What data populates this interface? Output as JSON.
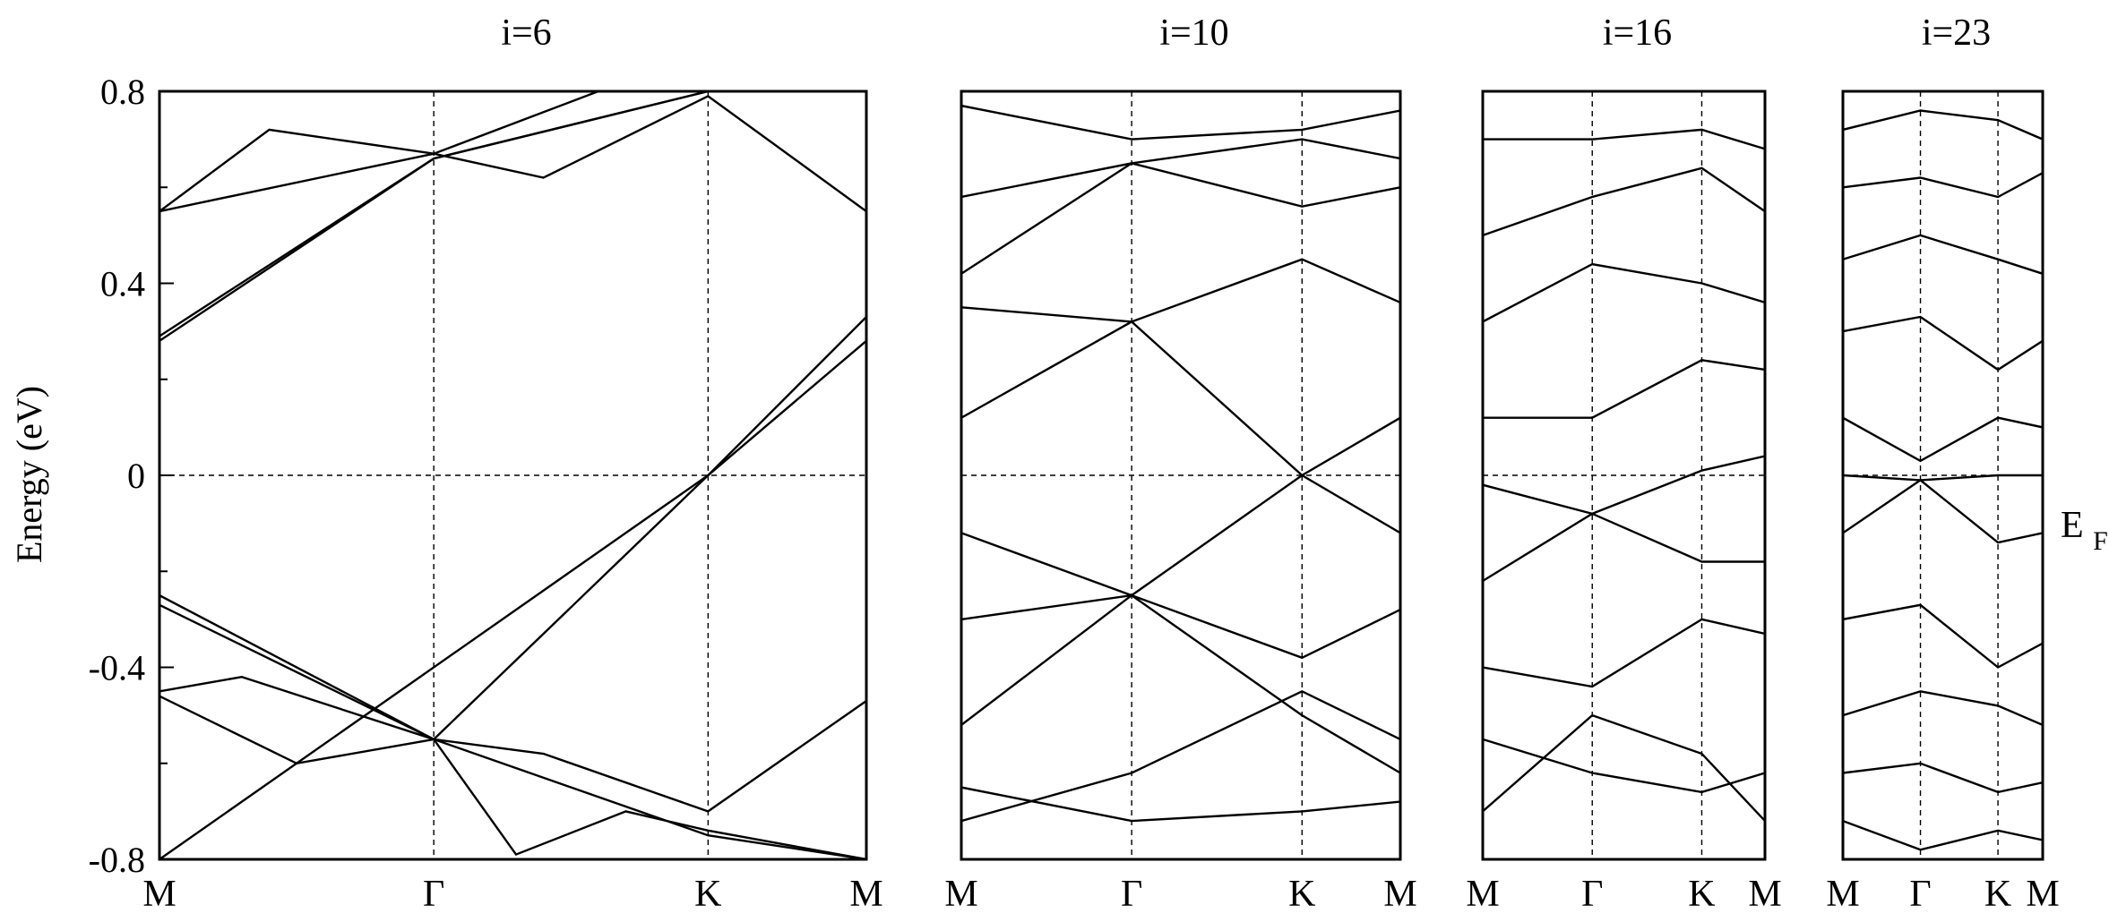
{
  "figure": {
    "ylabel": "Energy (eV)",
    "fermi_label": "E",
    "fermi_subscript": "F"
  },
  "chart_data": [
    {
      "type": "line",
      "title": "i=6",
      "ylabel": "Energy (eV)",
      "ylim": [
        -0.8,
        0.8
      ],
      "yticks": [
        "0.8",
        "0.4",
        "0",
        "-0.4",
        "-0.8"
      ],
      "ytick_values": [
        0.8,
        0.4,
        0,
        -0.4,
        -0.8
      ],
      "xticks": [
        "M",
        "Γ",
        "K",
        "M"
      ],
      "xtick_positions": [
        0,
        1,
        2,
        2.577
      ],
      "grid": "dashed lines at high-symmetry points and E=0",
      "series": [
        {
          "x": [
            0,
            2,
            2.577
          ],
          "y": [
            -0.8,
            0.0,
            0.28
          ]
        },
        {
          "x": [
            0,
            1,
            2,
            2.577
          ],
          "y": [
            -0.25,
            -0.55,
            0.0,
            0.33
          ]
        },
        {
          "x": [
            0,
            1,
            1.4,
            2,
            2.577
          ],
          "y": [
            0.55,
            0.67,
            0.62,
            0.79,
            0.55
          ]
        },
        {
          "x": [
            0,
            1,
            2,
            2.577
          ],
          "y": [
            0.28,
            0.66,
            0.8,
            0.8
          ]
        },
        {
          "x": [
            0,
            1,
            2,
            2.577
          ],
          "y": [
            0.29,
            0.66,
            0.8,
            0.8
          ]
        },
        {
          "x": [
            0,
            0.3,
            1,
            1.4,
            2,
            2.577
          ],
          "y": [
            -0.45,
            -0.42,
            -0.55,
            -0.58,
            -0.7,
            -0.47
          ]
        },
        {
          "x": [
            0,
            1,
            2,
            2.577
          ],
          "y": [
            -0.27,
            -0.55,
            -0.75,
            -0.8
          ]
        },
        {
          "x": [
            0,
            0.5,
            1,
            1.3,
            1.7,
            2,
            2.577
          ],
          "y": [
            -0.46,
            -0.6,
            -0.55,
            -0.79,
            -0.7,
            -0.74,
            -0.8
          ]
        },
        {
          "x": [
            0,
            0.4,
            1,
            1.6,
            2,
            2.577
          ],
          "y": [
            0.55,
            0.72,
            0.67,
            0.8,
            0.8,
            0.8
          ]
        }
      ]
    },
    {
      "type": "line",
      "title": "i=10",
      "ylim": [
        -0.8,
        0.8
      ],
      "xticks": [
        "M",
        "Γ",
        "K",
        "M"
      ],
      "xtick_positions": [
        0,
        1,
        2,
        2.577
      ],
      "series": [
        {
          "x": [
            0,
            1,
            2,
            2.577
          ],
          "y": [
            -0.12,
            -0.25,
            0.0,
            0.12
          ]
        },
        {
          "x": [
            0,
            1,
            2,
            2.577
          ],
          "y": [
            0.12,
            0.32,
            0.0,
            -0.12
          ]
        },
        {
          "x": [
            0,
            1,
            2,
            2.577
          ],
          "y": [
            0.35,
            0.32,
            0.45,
            0.36
          ]
        },
        {
          "x": [
            0,
            1,
            2,
            2.577
          ],
          "y": [
            -0.52,
            -0.25,
            -0.38,
            -0.28
          ]
        },
        {
          "x": [
            0,
            1,
            2,
            2.577
          ],
          "y": [
            0.58,
            0.65,
            0.56,
            0.6
          ]
        },
        {
          "x": [
            0,
            1,
            2,
            2.577
          ],
          "y": [
            -0.65,
            -0.72,
            -0.7,
            -0.68
          ]
        },
        {
          "x": [
            0,
            1,
            2,
            2.577
          ],
          "y": [
            0.77,
            0.7,
            0.72,
            0.76
          ]
        },
        {
          "x": [
            0,
            1,
            2,
            2.577
          ],
          "y": [
            -0.72,
            -0.62,
            -0.45,
            -0.55
          ]
        },
        {
          "x": [
            0,
            1,
            2,
            2.577
          ],
          "y": [
            0.42,
            0.65,
            0.7,
            0.66
          ]
        },
        {
          "x": [
            0,
            1,
            2,
            2.577
          ],
          "y": [
            -0.3,
            -0.25,
            -0.5,
            -0.62
          ]
        }
      ]
    },
    {
      "type": "line",
      "title": "i=16",
      "ylim": [
        -0.8,
        0.8
      ],
      "xticks": [
        "M",
        "Γ",
        "K",
        "M"
      ],
      "xtick_positions": [
        0,
        1,
        2,
        2.577
      ],
      "series": [
        {
          "x": [
            0,
            1,
            2,
            2.577
          ],
          "y": [
            -0.02,
            -0.08,
            0.01,
            0.04
          ]
        },
        {
          "x": [
            0,
            1,
            2,
            2.577
          ],
          "y": [
            0.12,
            0.12,
            0.24,
            0.22
          ]
        },
        {
          "x": [
            0,
            1,
            2,
            2.577
          ],
          "y": [
            -0.22,
            -0.08,
            -0.18,
            -0.18
          ]
        },
        {
          "x": [
            0,
            1,
            2,
            2.577
          ],
          "y": [
            0.32,
            0.44,
            0.4,
            0.36
          ]
        },
        {
          "x": [
            0,
            1,
            2,
            2.577
          ],
          "y": [
            -0.4,
            -0.44,
            -0.3,
            -0.33
          ]
        },
        {
          "x": [
            0,
            1,
            2,
            2.577
          ],
          "y": [
            0.5,
            0.58,
            0.64,
            0.55
          ]
        },
        {
          "x": [
            0,
            1,
            2,
            2.577
          ],
          "y": [
            -0.55,
            -0.62,
            -0.66,
            -0.62
          ]
        },
        {
          "x": [
            0,
            1,
            2,
            2.577
          ],
          "y": [
            0.7,
            0.7,
            0.72,
            0.68
          ]
        },
        {
          "x": [
            0,
            1,
            2,
            2.577
          ],
          "y": [
            -0.7,
            -0.5,
            -0.58,
            -0.72
          ]
        }
      ]
    },
    {
      "type": "line",
      "title": "i=23",
      "ylim": [
        -0.8,
        0.8
      ],
      "xticks": [
        "M",
        "Γ",
        "K",
        "M"
      ],
      "xtick_positions": [
        0,
        1,
        2,
        2.577
      ],
      "series": [
        {
          "x": [
            0,
            1,
            2,
            2.577
          ],
          "y": [
            0.0,
            -0.01,
            0.0,
            0.0
          ]
        },
        {
          "x": [
            0,
            1,
            2,
            2.577
          ],
          "y": [
            0.12,
            0.03,
            0.12,
            0.1
          ]
        },
        {
          "x": [
            0,
            1,
            2,
            2.577
          ],
          "y": [
            -0.12,
            -0.01,
            -0.14,
            -0.12
          ]
        },
        {
          "x": [
            0,
            1,
            2,
            2.577
          ],
          "y": [
            0.3,
            0.33,
            0.22,
            0.28
          ]
        },
        {
          "x": [
            0,
            1,
            2,
            2.577
          ],
          "y": [
            -0.3,
            -0.27,
            -0.4,
            -0.35
          ]
        },
        {
          "x": [
            0,
            1,
            2,
            2.577
          ],
          "y": [
            0.45,
            0.5,
            0.45,
            0.42
          ]
        },
        {
          "x": [
            0,
            1,
            2,
            2.577
          ],
          "y": [
            -0.5,
            -0.45,
            -0.48,
            -0.52
          ]
        },
        {
          "x": [
            0,
            1,
            2,
            2.577
          ],
          "y": [
            0.6,
            0.62,
            0.58,
            0.63
          ]
        },
        {
          "x": [
            0,
            1,
            2,
            2.577
          ],
          "y": [
            -0.62,
            -0.6,
            -0.66,
            -0.64
          ]
        },
        {
          "x": [
            0,
            1,
            2,
            2.577
          ],
          "y": [
            0.72,
            0.76,
            0.74,
            0.7
          ]
        },
        {
          "x": [
            0,
            1,
            2,
            2.577
          ],
          "y": [
            -0.72,
            -0.78,
            -0.74,
            -0.76
          ]
        }
      ]
    }
  ]
}
